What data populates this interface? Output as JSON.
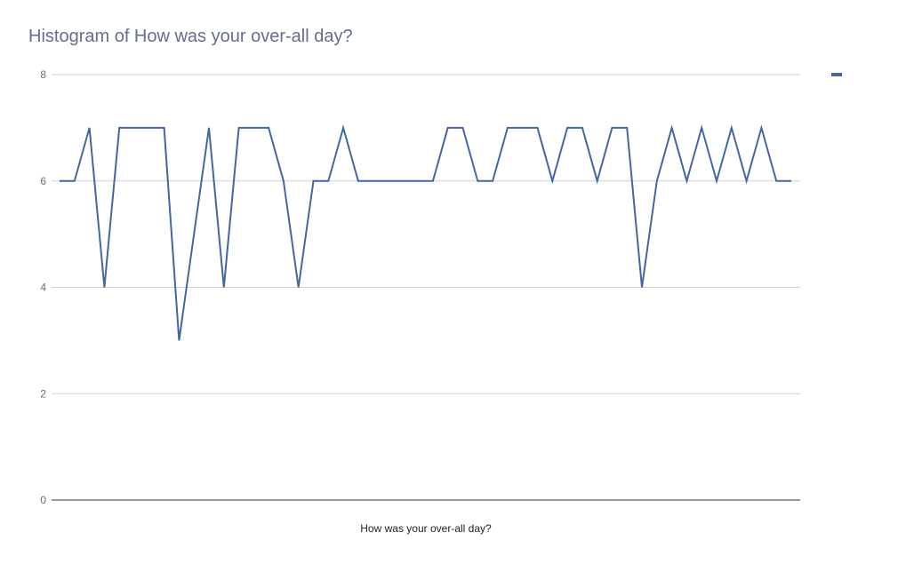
{
  "colors": {
    "series": "#4466a3",
    "grid": "#d0d0d0",
    "axis": "#333333",
    "title": "#5f6f92"
  },
  "chart_data": {
    "type": "line",
    "title": "Histogram of How was your over-all day?",
    "xlabel": "How was your over-all day?",
    "ylabel": "",
    "ylim": [
      0,
      8
    ],
    "yticks": [
      0,
      2,
      4,
      6,
      8
    ],
    "grid": true,
    "legend": "top-right",
    "series": [
      {
        "values": [
          6,
          6,
          7,
          4,
          7,
          7,
          7,
          7,
          3,
          5,
          7,
          4,
          7,
          7,
          7,
          6,
          4,
          6,
          6,
          7,
          6,
          6,
          6,
          6,
          6,
          6,
          7,
          7,
          6,
          6,
          7,
          7,
          7,
          6,
          7,
          7,
          6,
          7,
          7,
          4,
          6,
          7,
          6,
          7,
          6,
          7,
          6,
          7,
          6,
          6
        ]
      }
    ]
  }
}
